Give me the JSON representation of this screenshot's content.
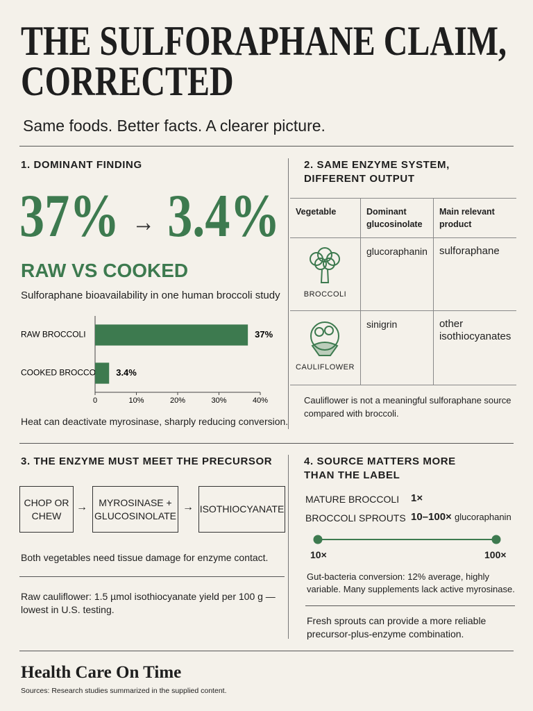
{
  "header": {
    "title": "THE SULFORAPHANE CLAIM, CORRECTED",
    "subtitle": "Same foods. Better facts. A clearer picture."
  },
  "section1": {
    "heading": "1. DOMINANT FINDING",
    "big_from": "37%",
    "arrow": "→",
    "big_to": "3.4%",
    "label": "RAW VS COOKED",
    "caption": "Sulforaphane bioavailability in one human broccoli study",
    "note": "Heat can deactivate myrosinase, sharply reducing conversion."
  },
  "chart_data": {
    "type": "bar",
    "orientation": "horizontal",
    "categories": [
      "RAW BROCCOLI",
      "COOKED BROCCOLI"
    ],
    "values": [
      37,
      3.4
    ],
    "value_labels": [
      "37%",
      "3.4%"
    ],
    "color": "#3d7a4f",
    "xlim": [
      0,
      40
    ],
    "xticks": [
      0,
      {
        "value": 10,
        "label": "10%"
      },
      {
        "value": 20,
        "label": "20%"
      },
      {
        "value": 30,
        "label": "30%"
      },
      {
        "value": 40,
        "label": "40%"
      }
    ]
  },
  "section2": {
    "heading": "2. SAME ENZYME SYSTEM, DIFFERENT OUTPUT",
    "table": {
      "header": [
        "Vegetable",
        "Dominant glucosinolate",
        "Main relevant product"
      ],
      "rows": [
        [
          "BROCCOLI",
          "glucoraphanin",
          "sulforaphane"
        ],
        [
          "CAULIFLOWER",
          "sinigrin",
          "other isothiocyanates"
        ]
      ]
    },
    "note": "Cauliflower is not a meaningful sulforaphane source compared with broccoli."
  },
  "section3": {
    "heading": "3. THE ENZYME MUST MEET THE PRECURSOR",
    "flow": [
      "CHOP OR CHEW",
      "MYROSINASE + GLUCOSINOLATE",
      "ISOTHIOCYANATE"
    ],
    "notes": [
      "Both vegetables need tissue damage for enzyme contact.",
      "Raw cauliflower: 1.5 µmol isothiocyanate yield per 100 g — lowest in U.S. testing."
    ]
  },
  "section4": {
    "heading": "4. SOURCE MATTERS MORE THAN THE LABEL",
    "rows": [
      {
        "label": "MATURE BROCCOLI",
        "value": "1×"
      },
      {
        "label": "BROCCOLI SPROUTS",
        "value": "10–100×",
        "unit": "glucoraphanin"
      }
    ],
    "range": [
      "10×",
      "100×"
    ],
    "notes": [
      "Gut-bacteria conversion: 12% average, highly variable. Many supplements lack active myrosinase.",
      "Fresh sprouts can provide a more reliable precursor-plus-enzyme combination."
    ]
  },
  "footer": {
    "brand": "Health Care On Time",
    "sources": "Sources: Research studies summarized in the supplied content."
  }
}
